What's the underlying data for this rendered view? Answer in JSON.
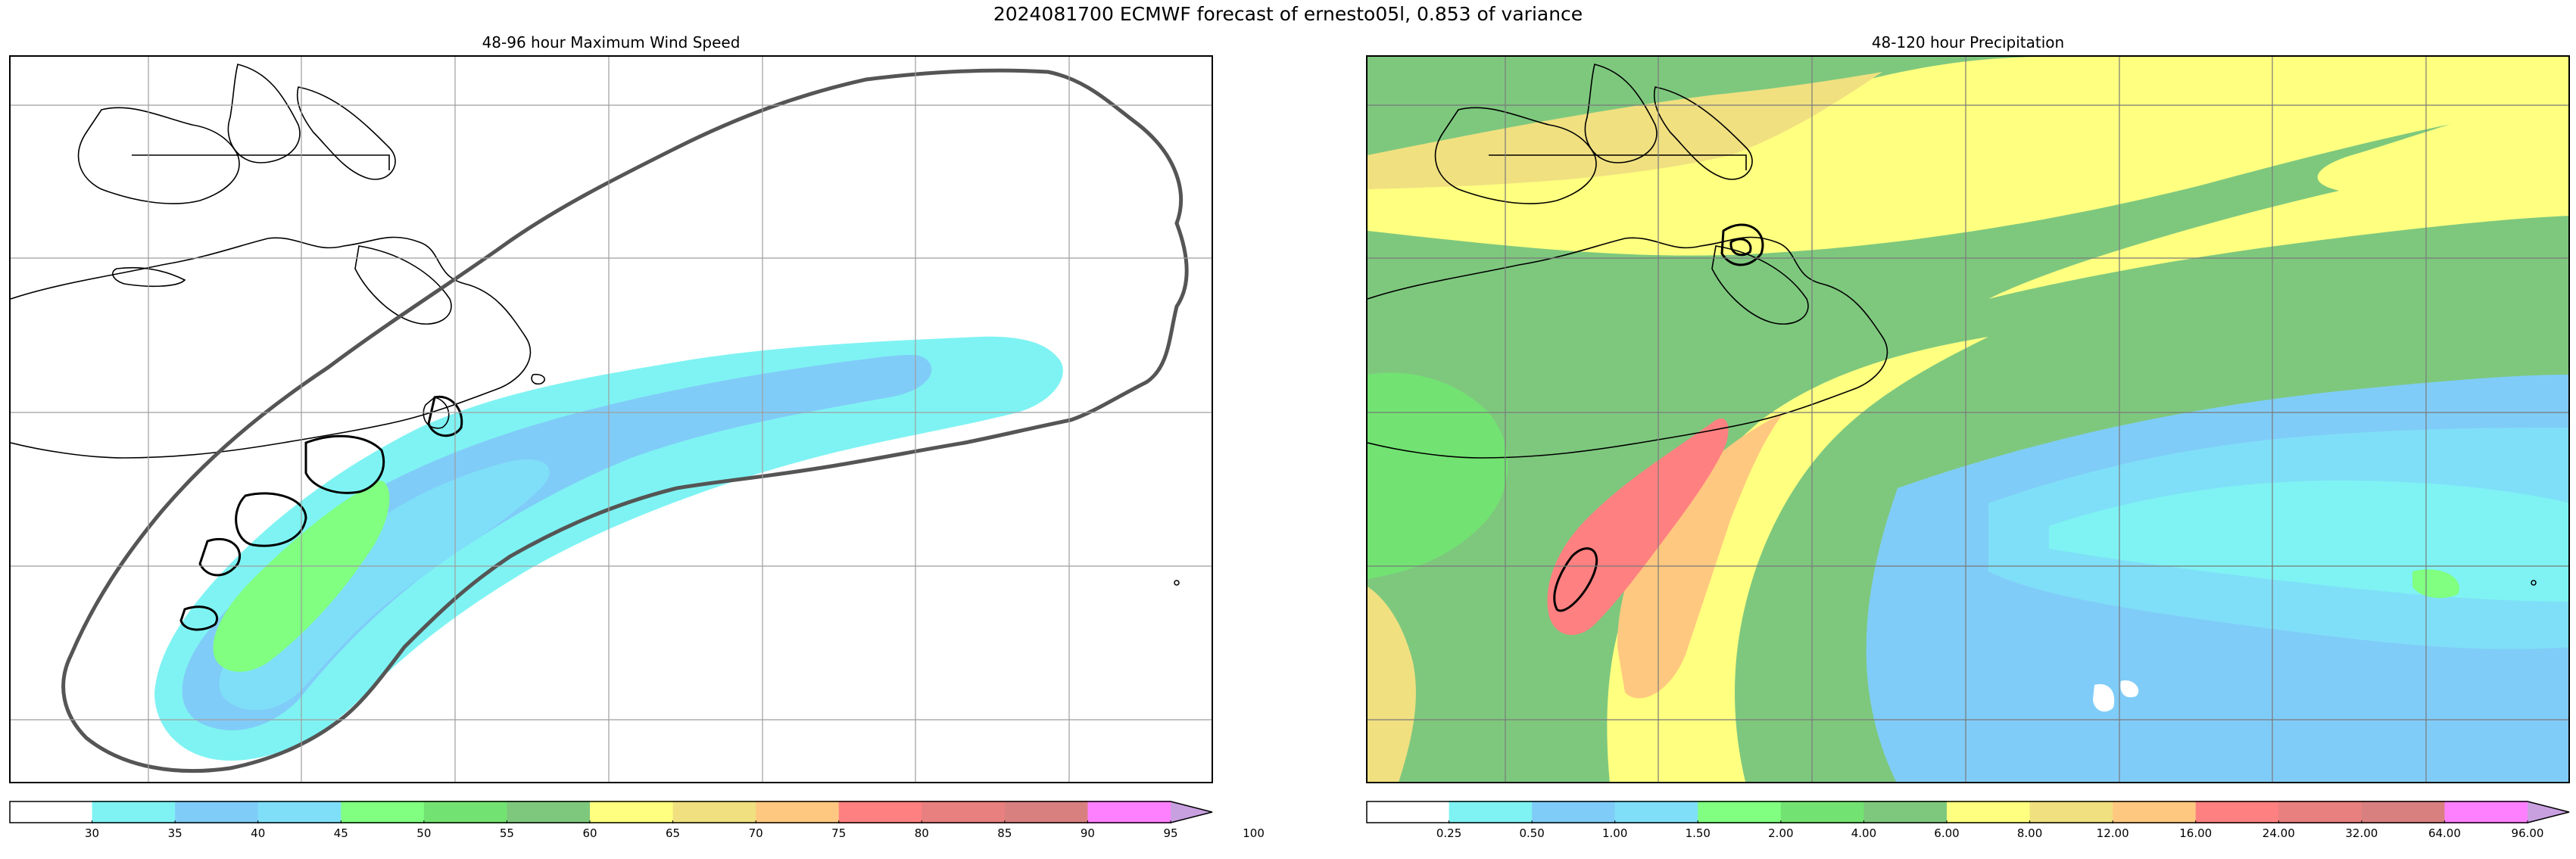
{
  "figure": {
    "title": "2024081700 ECMWF forecast of ernesto05l, 0.853 of variance"
  },
  "panels": [
    {
      "title": "48-96 hour Maximum Wind Speed",
      "colorbar": {
        "ticks": [
          "30",
          "35",
          "40",
          "45",
          "50",
          "55",
          "60",
          "65",
          "70",
          "75",
          "80",
          "85",
          "90",
          "95",
          "100"
        ],
        "colors": [
          "#ffffff",
          "#7ff3f3",
          "#80ccf8",
          "#7fdff8",
          "#80ff80",
          "#72e372",
          "#7ec87e",
          "#ffff80",
          "#f0e080",
          "#ffc880",
          "#ff8080",
          "#e88080",
          "#d88080",
          "#ff80ff",
          "#c8a0e0"
        ]
      }
    },
    {
      "title": "48-120 hour Precipitation",
      "colorbar": {
        "ticks": [
          "0.25",
          "0.50",
          "1.00",
          "1.50",
          "2.00",
          "4.00",
          "6.00",
          "8.00",
          "12.00",
          "16.00",
          "24.00",
          "32.00",
          "64.00",
          "96.00"
        ],
        "colors": [
          "#ffffff",
          "#7ff3f3",
          "#80ccf8",
          "#7fdff8",
          "#80ff80",
          "#72e372",
          "#7ec87e",
          "#ffff80",
          "#f0e080",
          "#ffc880",
          "#ff8080",
          "#e88080",
          "#d88080",
          "#ff80ff",
          "#c8a0e0"
        ]
      }
    }
  ]
}
